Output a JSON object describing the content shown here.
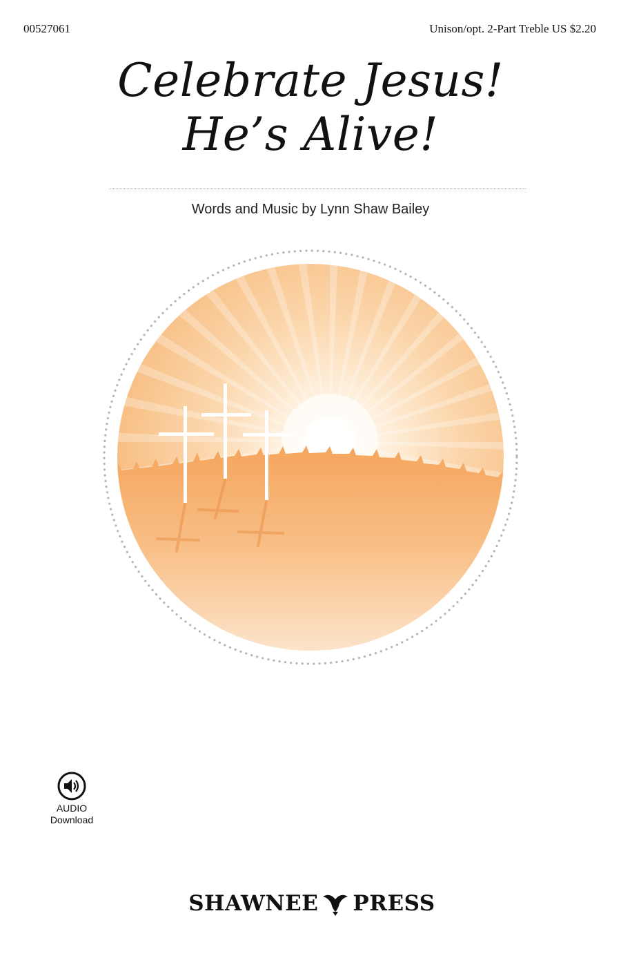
{
  "header": {
    "product_number": "00527061",
    "voicing_price": "Unison/opt. 2-Part Treble  US $2.20"
  },
  "title": {
    "line1": "Celebrate Jesus!",
    "line2": "He’s Alive!"
  },
  "credits": "Words and Music by Lynn Shaw Bailey",
  "illustration": {
    "icon": "three-crosses-sunrise",
    "colors": {
      "sun": "#fffaf0",
      "sky": "#f8c58e",
      "grass": "#f4a55c",
      "ground_light": "#fde7cf"
    }
  },
  "audio": {
    "icon": "audio-speaker-icon",
    "line1": "AUDIO",
    "line2": "Download"
  },
  "publisher": {
    "word1": "SHAWNEE",
    "word2": "PRESS",
    "icon": "dove-icon"
  }
}
